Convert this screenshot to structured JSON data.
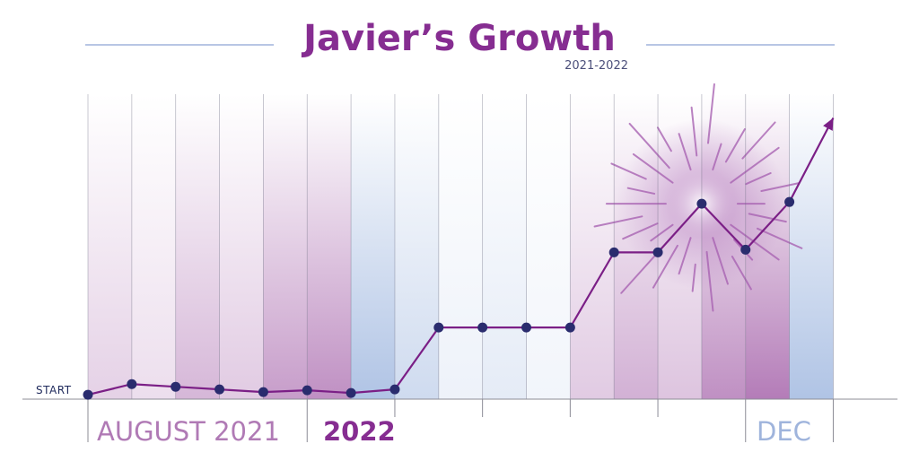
{
  "chart_data": {
    "type": "line",
    "title": "Javier’s Growth",
    "subtitle": "2021-2022",
    "start_label": "START",
    "x_labels": [
      {
        "text": "AUGUST 2021",
        "color": "#b07ab5"
      },
      {
        "text": "2022",
        "color": "#862d91"
      },
      {
        "text": "DEC",
        "color": "#9fb4dc"
      }
    ],
    "x": [
      0,
      1,
      2,
      3,
      4,
      5,
      6,
      7,
      8,
      9,
      10,
      11,
      12,
      13,
      14,
      15,
      16,
      17
    ],
    "values": [
      0.5,
      1.7,
      1.4,
      1.1,
      0.8,
      1.0,
      0.7,
      1.1,
      8.1,
      8.1,
      8.1,
      8.1,
      16.6,
      16.6,
      22.1,
      16.9,
      22.3,
      31.8
    ],
    "ylim": [
      0,
      35
    ],
    "grid": true,
    "colors": {
      "line": "#7b1f86",
      "point": "#2a2c6e",
      "purple": "#b47cb8",
      "blue": "#a7bde2",
      "title": "#862d91",
      "burst": "#a964b3"
    },
    "column_tints": [
      "purple",
      "purple",
      "purple",
      "purple",
      "purple",
      "purple",
      "blue",
      "blue",
      "blue",
      "blue",
      "blue",
      "purple",
      "purple",
      "purple",
      "purple",
      "purple",
      "blue"
    ],
    "column_strength": [
      0.35,
      0.25,
      0.55,
      0.4,
      0.75,
      0.85,
      0.9,
      0.55,
      0.2,
      0.3,
      0.15,
      0.4,
      0.6,
      0.45,
      0.85,
      1.0,
      0.9
    ]
  }
}
